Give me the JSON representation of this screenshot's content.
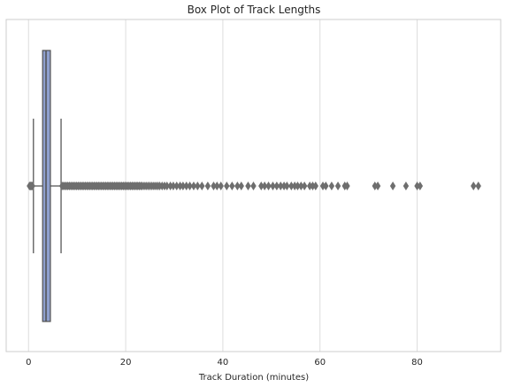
{
  "chart_data": {
    "type": "box",
    "title": "Box Plot of Track Lengths",
    "xlabel": "Track Duration (minutes)",
    "ylabel": "",
    "xlim": [
      -4.6,
      97.2
    ],
    "xticks": [
      0,
      20,
      40,
      60,
      80
    ],
    "grid": true,
    "box": {
      "min": 1.0,
      "q1": 2.9,
      "median": 3.6,
      "q3": 4.5,
      "max": 6.7
    },
    "outliers": [
      0.2,
      0.35,
      0.5,
      0.65,
      0.8,
      6.9,
      7.2,
      7.5,
      7.8,
      8.1,
      8.4,
      8.7,
      9.0,
      9.3,
      9.6,
      9.9,
      10.2,
      10.5,
      10.8,
      11.1,
      11.4,
      11.7,
      12.0,
      12.3,
      12.6,
      12.9,
      13.2,
      13.5,
      13.8,
      14.1,
      14.4,
      14.7,
      15.0,
      15.3,
      15.6,
      15.9,
      16.2,
      16.5,
      16.8,
      17.1,
      17.4,
      17.7,
      18.0,
      18.3,
      18.6,
      18.9,
      19.2,
      19.5,
      19.8,
      20.1,
      20.4,
      20.7,
      21.0,
      21.3,
      21.6,
      21.9,
      22.2,
      22.5,
      22.8,
      23.1,
      23.4,
      23.8,
      24.2,
      24.6,
      25.0,
      25.4,
      25.8,
      26.2,
      26.6,
      27.0,
      27.5,
      28.0,
      28.5,
      29.2,
      29.8,
      30.5,
      31.2,
      31.8,
      32.5,
      33.2,
      34.0,
      34.8,
      35.7,
      36.9,
      38.1,
      38.8,
      39.6,
      40.8,
      41.9,
      43.0,
      43.8,
      45.2,
      46.3,
      47.9,
      48.6,
      49.4,
      50.3,
      51.1,
      51.9,
      52.6,
      53.2,
      54.1,
      54.8,
      55.4,
      56.1,
      56.8,
      57.9,
      58.5,
      59.1,
      60.6,
      61.2,
      62.4,
      63.7,
      65.1,
      65.6,
      71.3,
      71.9,
      75.0,
      77.7,
      80.0,
      80.6,
      91.6,
      92.6
    ]
  }
}
